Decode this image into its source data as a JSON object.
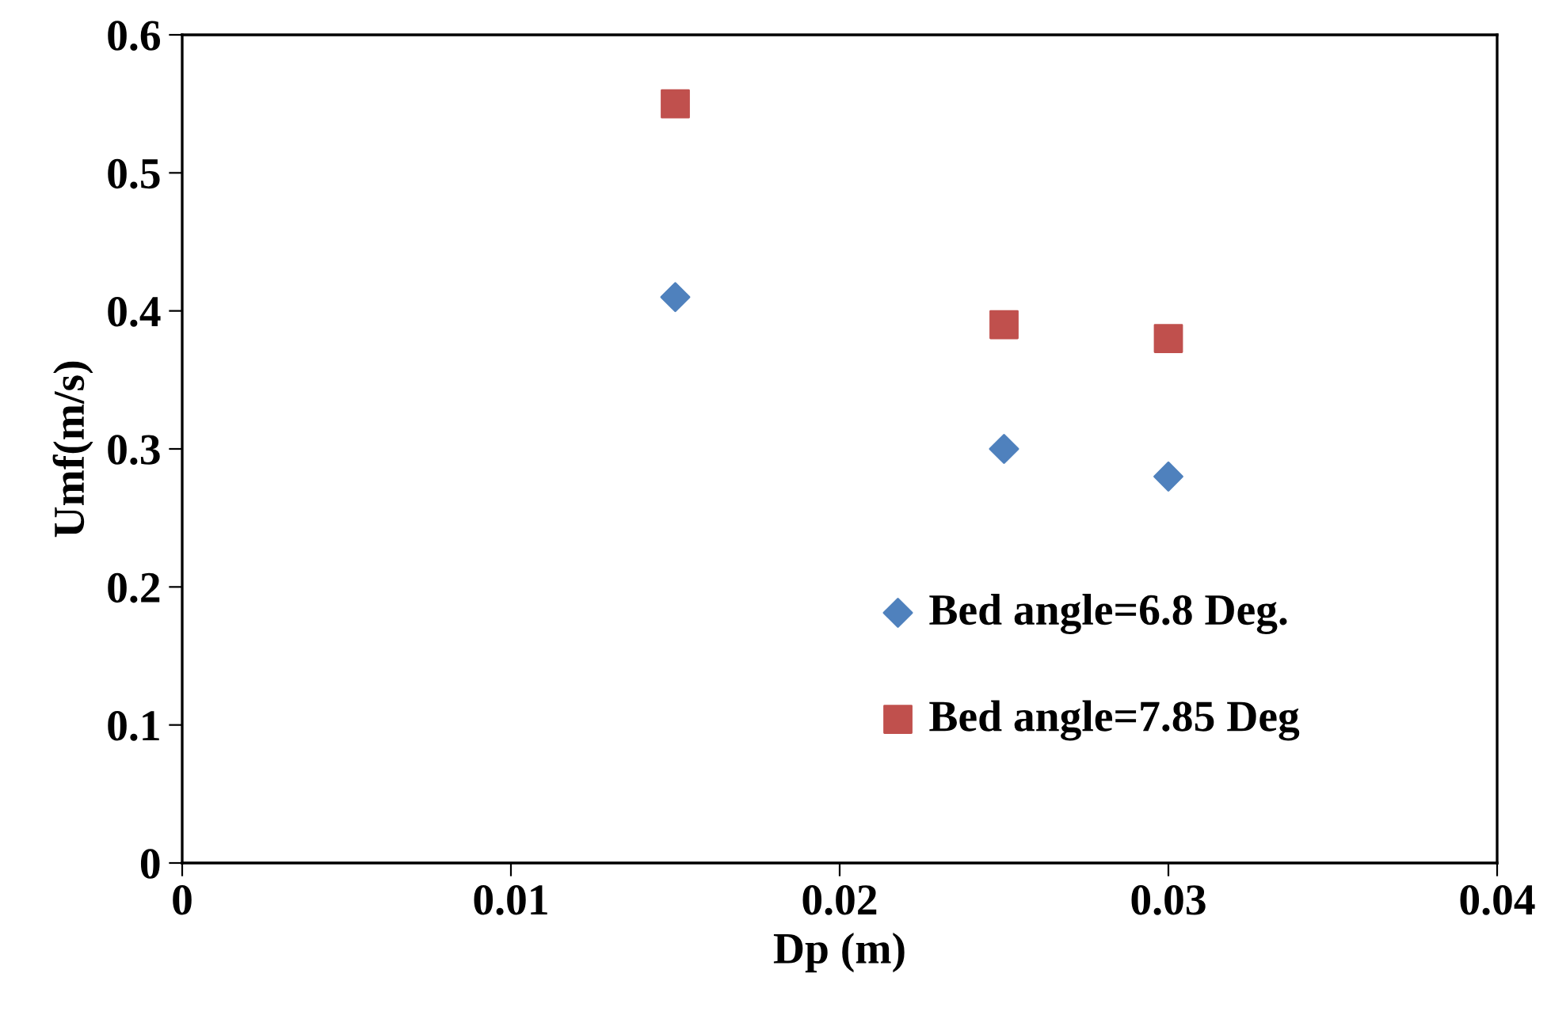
{
  "chart_data": {
    "type": "scatter",
    "xlabel": "Dp (m)",
    "ylabel": "Umf(m/s)",
    "series": [
      {
        "name": "Bed angle=6.8 Deg.",
        "color": "#4f81bd",
        "marker": "diamond",
        "x": [
          0.015,
          0.025,
          0.03
        ],
        "values": [
          0.41,
          0.3,
          0.28
        ]
      },
      {
        "name": "Bed angle=7.85 Deg",
        "color": "#c0504d",
        "marker": "square",
        "x": [
          0.015,
          0.025,
          0.03
        ],
        "values": [
          0.55,
          0.39,
          0.38
        ]
      }
    ],
    "xlim": [
      0,
      0.04
    ],
    "xticks": [
      0,
      0.01,
      0.02,
      0.03,
      0.04
    ],
    "ylim": [
      0,
      0.6
    ],
    "yticks": [
      0,
      0.1,
      0.2,
      0.3,
      0.4,
      0.5,
      0.6
    ],
    "grid": false,
    "legend": "bottom right"
  }
}
